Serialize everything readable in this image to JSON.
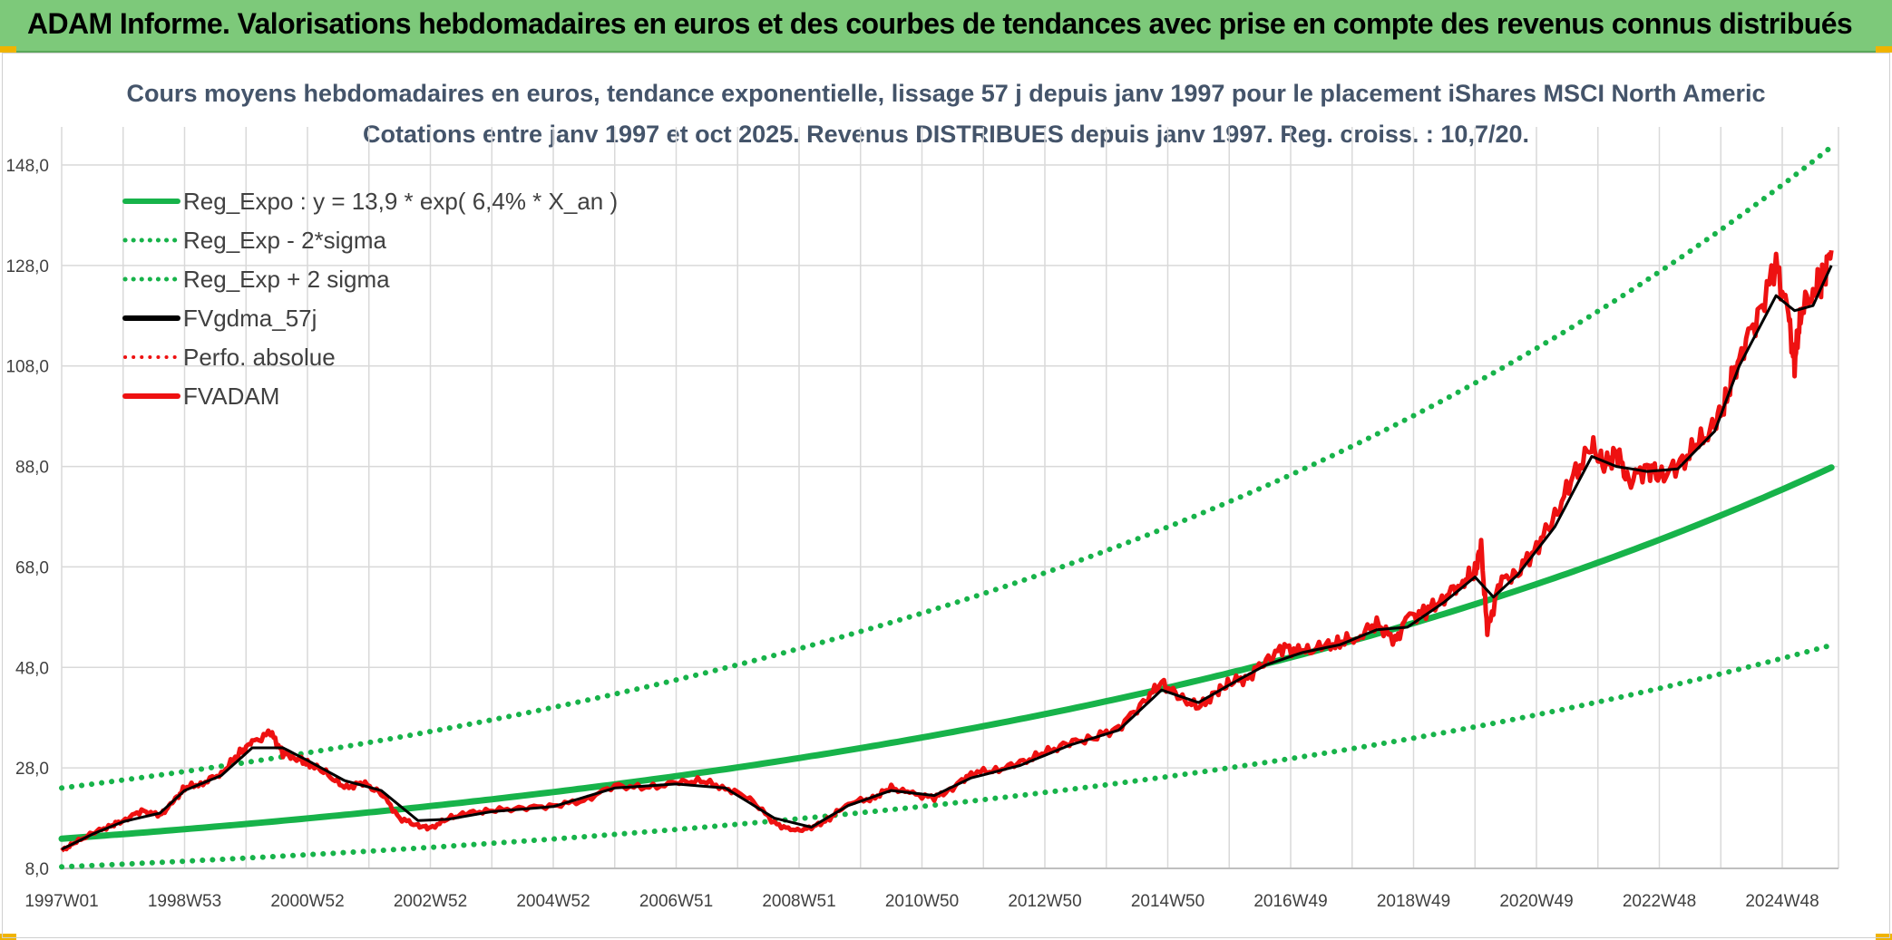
{
  "header": {
    "title": "ADAM Informe. Valorisations hebdomadaires en euros et des courbes de tendances avec prise en compte des revenus connus distribués"
  },
  "colors": {
    "banner": "#7dc97a",
    "trend": "#17b34a",
    "smooth": "#000000",
    "price": "#ee1111",
    "perfo": "#ee1111",
    "grid": "#d9d9d9"
  },
  "chart_data": {
    "type": "line",
    "title_line1": "Cours moyens hebdomadaires en euros, tendance exponentielle, lissage 57 j depuis janv 1997 pour le placement iShares MSCI North Americ",
    "title_line2": "Cotations entre janv 1997 et oct 2025. Revenus DISTRIBUES depuis janv 1997. Reg. croiss. : 10,7/20.",
    "ylim": [
      8,
      155
    ],
    "xlim": [
      1997.0,
      2025.8
    ],
    "y_ticks": [
      "8,0",
      "28,0",
      "48,0",
      "68,0",
      "88,0",
      "108,0",
      "128,0",
      "148,0"
    ],
    "y_tick_values": [
      8,
      28,
      48,
      68,
      88,
      108,
      128,
      148
    ],
    "x_ticks": [
      "1997W01",
      "1998W53",
      "2000W52",
      "2002W52",
      "2004W52",
      "2006W51",
      "2008W51",
      "2010W50",
      "2012W50",
      "2014W50",
      "2016W49",
      "2018W49",
      "2020W49",
      "2022W48",
      "2024W48"
    ],
    "x_tick_values": [
      1997.0,
      1999.0,
      2001.0,
      2003.0,
      2005.0,
      2007.0,
      2009.0,
      2011.0,
      2013.0,
      2015.0,
      2017.0,
      2019.0,
      2021.0,
      2023.0,
      2025.0
    ],
    "legend": [
      {
        "label": "Reg_Expo : y = 13,9 * exp( 6,4% *  X_an )",
        "style": "solid",
        "color": "#17b34a"
      },
      {
        "label": "Reg_Exp - 2*sigma",
        "style": "dotted",
        "color": "#17b34a"
      },
      {
        "label": "Reg_Exp + 2 sigma",
        "style": "dotted",
        "color": "#17b34a"
      },
      {
        "label": "FVgdma_57j",
        "style": "solid",
        "color": "#000000"
      },
      {
        "label": "Perfo. absolue",
        "style": "dotted",
        "color": "#ee1111"
      },
      {
        "label": "FVADAM",
        "style": "solid",
        "color": "#ee1111"
      }
    ],
    "regression": {
      "a": 13.9,
      "rate": 0.064,
      "minus_2sigma_start": 8.3,
      "plus_2sigma_start": 24.0
    },
    "series": [
      {
        "name": "FVADAM",
        "x": [
          1997.0,
          1997.2,
          1997.5,
          1997.8,
          1998.0,
          1998.3,
          1998.6,
          1998.8,
          1999.0,
          1999.3,
          1999.6,
          1999.9,
          2000.1,
          2000.4,
          2000.6,
          2000.8,
          2001.0,
          2001.3,
          2001.6,
          2001.9,
          2002.2,
          2002.5,
          2002.8,
          2003.0,
          2003.3,
          2003.6,
          2004.0,
          2004.5,
          2005.0,
          2005.5,
          2006.0,
          2006.5,
          2007.0,
          2007.4,
          2007.8,
          2008.2,
          2008.6,
          2008.9,
          2009.2,
          2009.5,
          2009.8,
          2010.2,
          2010.5,
          2010.8,
          2011.2,
          2011.5,
          2011.8,
          2012.2,
          2012.6,
          2013.0,
          2013.4,
          2013.8,
          2014.2,
          2014.6,
          2014.9,
          2015.2,
          2015.5,
          2015.8,
          2016.0,
          2016.3,
          2016.6,
          2016.9,
          2017.2,
          2017.5,
          2017.8,
          2018.1,
          2018.4,
          2018.7,
          2018.9,
          2019.2,
          2019.5,
          2019.8,
          2020.0,
          2020.1,
          2020.2,
          2020.4,
          2020.7,
          2021.0,
          2021.3,
          2021.6,
          2021.9,
          2022.1,
          2022.3,
          2022.5,
          2022.8,
          2023.0,
          2023.3,
          2023.6,
          2023.9,
          2024.1,
          2024.3,
          2024.6,
          2024.9,
          2025.1,
          2025.2,
          2025.3,
          2025.5,
          2025.65,
          2025.8
        ],
        "y": [
          11.5,
          13.0,
          15.0,
          16.5,
          17.5,
          19.5,
          18.5,
          21.0,
          24.0,
          25.0,
          27.0,
          31.0,
          33.0,
          35.0,
          31.0,
          30.0,
          29.0,
          27.0,
          24.0,
          25.0,
          23.0,
          18.0,
          16.5,
          16.0,
          18.0,
          19.0,
          19.5,
          20.0,
          20.5,
          21.5,
          24.5,
          24.0,
          25.0,
          25.5,
          24.0,
          22.0,
          17.0,
          15.5,
          16.0,
          18.0,
          21.0,
          22.0,
          24.0,
          23.0,
          22.0,
          24.0,
          27.0,
          27.5,
          29.0,
          31.0,
          33.0,
          34.0,
          36.0,
          41.0,
          45.0,
          42.0,
          40.0,
          43.0,
          45.0,
          46.0,
          49.5,
          52.0,
          51.0,
          52.0,
          53.0,
          54.0,
          57.0,
          53.0,
          58.0,
          59.0,
          62.0,
          65.0,
          67.0,
          72.0,
          55.0,
          65.0,
          67.0,
          72.0,
          78.0,
          86.0,
          92.0,
          88.0,
          91.0,
          85.0,
          88.0,
          86.0,
          88.0,
          92.0,
          96.0,
          102.0,
          110.0,
          118.0,
          128.0,
          118.0,
          108.0,
          119.0,
          123.0,
          125.0,
          131.0
        ]
      },
      {
        "name": "FVgdma_57j",
        "x": [
          1997.0,
          1997.5,
          1998.0,
          1998.6,
          1999.0,
          1999.6,
          2000.1,
          2000.6,
          2001.0,
          2001.6,
          2002.2,
          2002.8,
          2003.3,
          2004.0,
          2005.0,
          2006.0,
          2007.0,
          2007.8,
          2008.6,
          2009.2,
          2009.8,
          2010.5,
          2011.2,
          2011.8,
          2012.6,
          2013.4,
          2014.2,
          2014.9,
          2015.5,
          2016.0,
          2016.6,
          2017.2,
          2017.8,
          2018.4,
          2018.9,
          2019.5,
          2020.0,
          2020.3,
          2020.7,
          2021.3,
          2021.9,
          2022.3,
          2022.8,
          2023.3,
          2023.9,
          2024.3,
          2024.9,
          2025.2,
          2025.5,
          2025.8
        ],
        "y": [
          11.8,
          14.8,
          17.3,
          19.0,
          23.5,
          26.5,
          32.0,
          32.0,
          29.5,
          25.5,
          23.5,
          17.5,
          17.8,
          19.3,
          20.3,
          24.0,
          24.8,
          24.0,
          18.0,
          16.2,
          20.5,
          23.5,
          22.5,
          26.0,
          28.5,
          32.5,
          35.5,
          43.5,
          41.0,
          44.5,
          48.5,
          51.0,
          52.5,
          55.5,
          56.0,
          61.0,
          66.0,
          62.0,
          66.5,
          76.0,
          90.0,
          88.0,
          87.0,
          87.5,
          95.0,
          108.0,
          122.0,
          119.0,
          120.0,
          128.0
        ]
      }
    ]
  }
}
